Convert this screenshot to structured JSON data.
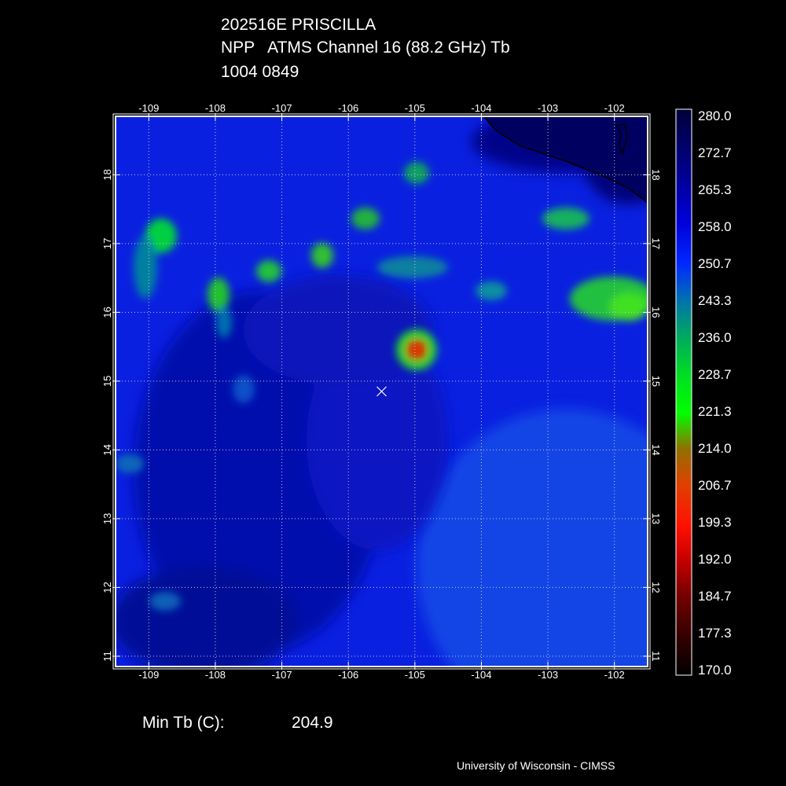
{
  "header": {
    "storm": "202516E PRISCILLA",
    "sensor": "NPP   ATMS Channel 16 (88.2 GHz) Tb",
    "datetime": "1004 0849"
  },
  "map": {
    "lon_ticks": [
      "-109",
      "-108",
      "-107",
      "-106",
      "-105",
      "-104",
      "-103",
      "-102"
    ],
    "lat_ticks": [
      "18",
      "17",
      "16",
      "15",
      "14",
      "13",
      "12",
      "11"
    ],
    "lon_range": [
      -109.5,
      -101.5
    ],
    "lat_range": [
      10.85,
      18.85
    ],
    "center_marker": {
      "lon": -105.5,
      "lat": 14.85
    },
    "min_tb_location": {
      "lon": -104.95,
      "lat": 15.45
    },
    "grid": true
  },
  "colorbar": {
    "labels": [
      "280.0",
      "272.7",
      "265.3",
      "258.0",
      "250.7",
      "243.3",
      "236.0",
      "228.7",
      "221.3",
      "214.0",
      "206.7",
      "199.3",
      "192.0",
      "184.7",
      "177.3",
      "170.0"
    ],
    "stops": [
      {
        "v": 280,
        "c": "#000038"
      },
      {
        "v": 268,
        "c": "#00008c"
      },
      {
        "v": 258,
        "c": "#0000d8"
      },
      {
        "v": 250,
        "c": "#0028ff"
      },
      {
        "v": 243,
        "c": "#0070b0"
      },
      {
        "v": 236,
        "c": "#00a860"
      },
      {
        "v": 228,
        "c": "#00e020"
      },
      {
        "v": 221,
        "c": "#00ff00"
      },
      {
        "v": 214,
        "c": "#907000"
      },
      {
        "v": 207,
        "c": "#e04000"
      },
      {
        "v": 199,
        "c": "#ff1000"
      },
      {
        "v": 192,
        "c": "#c00000"
      },
      {
        "v": 185,
        "c": "#700000"
      },
      {
        "v": 177,
        "c": "#300000"
      },
      {
        "v": 170,
        "c": "#000000"
      }
    ]
  },
  "summary": {
    "min_tb_label": "Min Tb (C):",
    "min_tb_value": "204.9"
  },
  "credit": "University of Wisconsin - CIMSS"
}
